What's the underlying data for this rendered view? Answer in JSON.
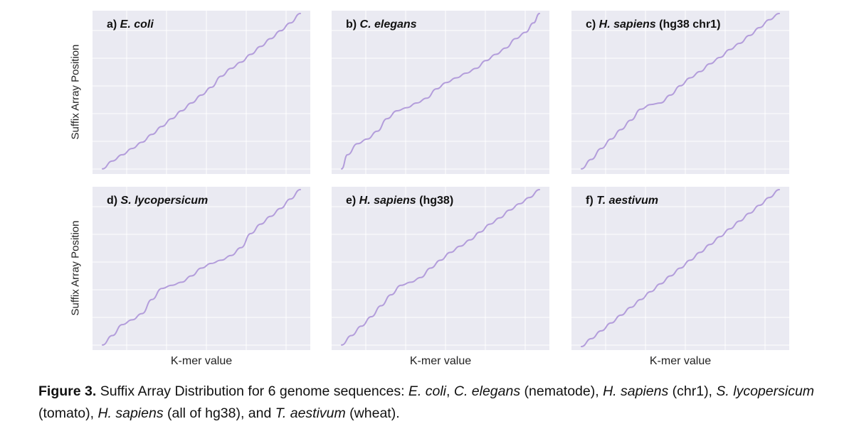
{
  "chart_data": [
    {
      "type": "line",
      "id": "a",
      "label_prefix": "a) ",
      "species": "E. coli",
      "label_suffix": "",
      "xlabel": "",
      "ylabel": "Suffix Array Position",
      "xlim": [
        0,
        1
      ],
      "ylim": [
        0,
        1
      ],
      "grid": true,
      "series_color": "#b39ddb",
      "x": [
        0,
        0.05,
        0.1,
        0.15,
        0.2,
        0.25,
        0.3,
        0.35,
        0.4,
        0.45,
        0.5,
        0.55,
        0.6,
        0.65,
        0.7,
        0.75,
        0.8,
        0.85,
        0.9,
        0.95,
        1
      ],
      "y": [
        0.01,
        0.06,
        0.1,
        0.14,
        0.18,
        0.23,
        0.28,
        0.33,
        0.38,
        0.43,
        0.48,
        0.53,
        0.6,
        0.65,
        0.69,
        0.74,
        0.79,
        0.84,
        0.89,
        0.94,
        1.0
      ]
    },
    {
      "type": "line",
      "id": "b",
      "label_prefix": "b) ",
      "species": "C. elegans",
      "label_suffix": "",
      "xlabel": "",
      "ylabel": "",
      "xlim": [
        0,
        1
      ],
      "ylim": [
        0,
        1
      ],
      "grid": true,
      "series_color": "#b39ddb",
      "x": [
        0,
        0.03,
        0.08,
        0.13,
        0.18,
        0.23,
        0.28,
        0.33,
        0.38,
        0.43,
        0.48,
        0.53,
        0.58,
        0.63,
        0.68,
        0.73,
        0.78,
        0.83,
        0.88,
        0.93,
        0.97,
        1
      ],
      "y": [
        0.01,
        0.1,
        0.17,
        0.2,
        0.25,
        0.33,
        0.38,
        0.4,
        0.43,
        0.46,
        0.52,
        0.56,
        0.59,
        0.62,
        0.65,
        0.7,
        0.74,
        0.78,
        0.84,
        0.88,
        0.94,
        1.0
      ]
    },
    {
      "type": "line",
      "id": "c",
      "label_prefix": "c) ",
      "species": "H. sapiens",
      "label_suffix": " (hg38 chr1)",
      "xlabel": "",
      "ylabel": "",
      "xlim": [
        0,
        1
      ],
      "ylim": [
        0,
        1
      ],
      "grid": true,
      "series_color": "#b39ddb",
      "x": [
        0,
        0.05,
        0.1,
        0.15,
        0.2,
        0.25,
        0.3,
        0.35,
        0.4,
        0.45,
        0.5,
        0.55,
        0.6,
        0.65,
        0.7,
        0.75,
        0.8,
        0.85,
        0.9,
        0.95,
        1
      ],
      "y": [
        0.01,
        0.07,
        0.14,
        0.2,
        0.26,
        0.32,
        0.39,
        0.42,
        0.43,
        0.48,
        0.54,
        0.59,
        0.63,
        0.68,
        0.72,
        0.77,
        0.81,
        0.86,
        0.91,
        0.96,
        1.0
      ]
    },
    {
      "type": "line",
      "id": "d",
      "label_prefix": "d) ",
      "species": "S. lycopersicum",
      "label_suffix": "",
      "xlabel": "K-mer value",
      "ylabel": "Suffix Array Position",
      "xlim": [
        0,
        1
      ],
      "ylim": [
        0,
        1
      ],
      "grid": true,
      "series_color": "#b39ddb",
      "x": [
        0,
        0.05,
        0.1,
        0.15,
        0.2,
        0.25,
        0.3,
        0.35,
        0.4,
        0.45,
        0.5,
        0.55,
        0.6,
        0.65,
        0.7,
        0.75,
        0.8,
        0.85,
        0.9,
        0.95,
        1
      ],
      "y": [
        0.01,
        0.07,
        0.14,
        0.17,
        0.21,
        0.3,
        0.37,
        0.39,
        0.41,
        0.45,
        0.5,
        0.53,
        0.55,
        0.58,
        0.63,
        0.72,
        0.78,
        0.83,
        0.88,
        0.94,
        1.0
      ]
    },
    {
      "type": "line",
      "id": "e",
      "label_prefix": "e) ",
      "species": "H. sapiens",
      "label_suffix": " (hg38)",
      "xlabel": "K-mer value",
      "ylabel": "",
      "xlim": [
        0,
        1
      ],
      "ylim": [
        0,
        1
      ],
      "grid": true,
      "series_color": "#b39ddb",
      "x": [
        0,
        0.05,
        0.1,
        0.15,
        0.2,
        0.25,
        0.3,
        0.35,
        0.4,
        0.45,
        0.5,
        0.55,
        0.6,
        0.65,
        0.7,
        0.75,
        0.8,
        0.85,
        0.9,
        0.95,
        1
      ],
      "y": [
        0.01,
        0.07,
        0.13,
        0.19,
        0.26,
        0.33,
        0.39,
        0.41,
        0.44,
        0.5,
        0.55,
        0.6,
        0.64,
        0.68,
        0.73,
        0.78,
        0.82,
        0.87,
        0.91,
        0.95,
        1.0
      ]
    },
    {
      "type": "line",
      "id": "f",
      "label_prefix": "f) ",
      "species": "T. aestivum",
      "label_suffix": "",
      "xlabel": "K-mer value",
      "ylabel": "",
      "xlim": [
        0,
        1
      ],
      "ylim": [
        0,
        1
      ],
      "grid": true,
      "series_color": "#b39ddb",
      "x": [
        0,
        0.05,
        0.1,
        0.15,
        0.2,
        0.25,
        0.3,
        0.35,
        0.4,
        0.45,
        0.5,
        0.55,
        0.6,
        0.65,
        0.7,
        0.75,
        0.8,
        0.85,
        0.9,
        0.95,
        1
      ],
      "y": [
        0.0,
        0.05,
        0.1,
        0.15,
        0.2,
        0.25,
        0.3,
        0.35,
        0.4,
        0.45,
        0.5,
        0.55,
        0.6,
        0.65,
        0.7,
        0.75,
        0.8,
        0.85,
        0.9,
        0.95,
        1.0
      ]
    }
  ],
  "caption": {
    "label": "Figure 3.",
    "t1": " Suffix Array Distribution for 6 genome sequences: ",
    "s1": "E. coli",
    "t2": ", ",
    "s2": "C. elegans",
    "t3": " (nematode), ",
    "s3": "H. sapiens",
    "t4": " (chr1), ",
    "s4": "S. lycopersicum",
    "t5": " (tomato), ",
    "s5": "H. sapiens",
    "t6": " (all of hg38), and ",
    "s6": "T. aestivum",
    "t7": " (wheat)."
  }
}
